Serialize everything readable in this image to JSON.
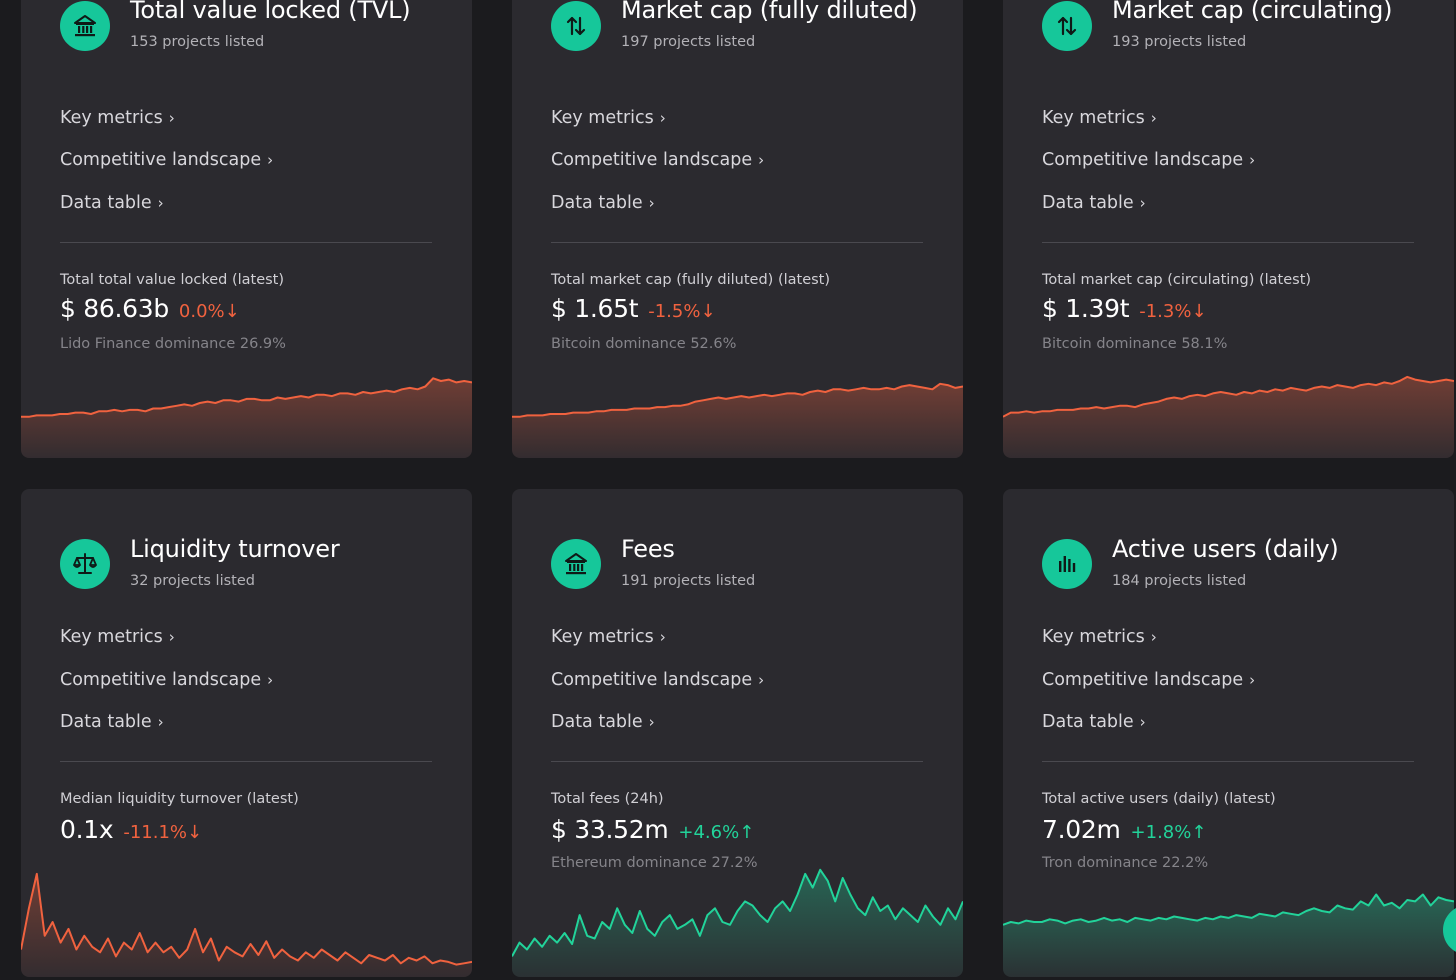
{
  "colors": {
    "accent": "#16c79a",
    "negative": "#f0623f",
    "positive": "#22d39a",
    "card": "#2b2a2f"
  },
  "links": {
    "key_metrics": "Key metrics",
    "competitive_landscape": "Competitive landscape",
    "data_table": "Data table",
    "chevron": "›"
  },
  "cards": [
    {
      "icon": "bank-icon",
      "title": "Total value locked (TVL)",
      "subtitle": "153 projects listed",
      "metric_label": "Total total value locked (latest)",
      "value": "$ 86.63b",
      "change": "0.0%↓",
      "trend": "negative",
      "dominance": "Lido Finance dominance 26.9%",
      "series": [
        30,
        30,
        31,
        31,
        31,
        32,
        32,
        33,
        33,
        32,
        34,
        34,
        35,
        34,
        35,
        35,
        34,
        36,
        36,
        37,
        38,
        39,
        38,
        40,
        41,
        40,
        42,
        42,
        41,
        43,
        43,
        42,
        42,
        44,
        43,
        44,
        45,
        44,
        46,
        46,
        45,
        47,
        47,
        46,
        48,
        47,
        48,
        49,
        48,
        50,
        51,
        50,
        52,
        58,
        56,
        57,
        55,
        56,
        55
      ]
    },
    {
      "icon": "arrows-updown-icon",
      "title": "Market cap (fully diluted)",
      "subtitle": "197 projects listed",
      "metric_label": "Total market cap (fully diluted) (latest)",
      "value": "$ 1.65t",
      "change": "-1.5%↓",
      "trend": "negative",
      "dominance": "Bitcoin dominance 52.6%",
      "series": [
        30,
        30,
        31,
        31,
        31,
        32,
        32,
        32,
        33,
        33,
        33,
        34,
        34,
        35,
        35,
        35,
        36,
        36,
        36,
        37,
        37,
        38,
        38,
        39,
        41,
        42,
        43,
        44,
        43,
        44,
        45,
        44,
        45,
        46,
        45,
        46,
        47,
        47,
        46,
        48,
        49,
        48,
        50,
        50,
        49,
        50,
        51,
        50,
        50,
        51,
        50,
        52,
        53,
        52,
        51,
        50,
        54,
        53,
        51,
        52
      ]
    },
    {
      "icon": "arrows-updown-icon",
      "title": "Market cap (circulating)",
      "subtitle": "193 projects listed",
      "metric_label": "Total market cap (circulating) (latest)",
      "value": "$ 1.39t",
      "change": "-1.3%↓",
      "trend": "negative",
      "dominance": "Bitcoin dominance 58.1%",
      "series": [
        30,
        33,
        33,
        34,
        33,
        34,
        34,
        35,
        35,
        35,
        36,
        36,
        37,
        36,
        37,
        38,
        38,
        37,
        39,
        40,
        41,
        43,
        44,
        43,
        45,
        46,
        45,
        47,
        48,
        47,
        46,
        48,
        47,
        49,
        48,
        50,
        49,
        51,
        50,
        49,
        51,
        52,
        51,
        53,
        52,
        51,
        53,
        54,
        53,
        55,
        54,
        56,
        59,
        57,
        56,
        55,
        56,
        57,
        56
      ]
    },
    {
      "icon": "scale-icon",
      "title": "Liquidity turnover",
      "subtitle": "32 projects listed",
      "metric_label": "Median liquidity turnover (latest)",
      "value": "0.1x",
      "change": "-11.1%↓",
      "trend": "negative",
      "dominance": "",
      "series": [
        20,
        50,
        75,
        30,
        40,
        25,
        35,
        20,
        30,
        22,
        18,
        28,
        15,
        25,
        20,
        32,
        18,
        25,
        18,
        22,
        14,
        20,
        35,
        18,
        28,
        12,
        22,
        18,
        15,
        24,
        16,
        26,
        14,
        20,
        15,
        12,
        18,
        14,
        20,
        16,
        12,
        18,
        14,
        10,
        16,
        14,
        12,
        16,
        10,
        14,
        12,
        15,
        10,
        12,
        11,
        9,
        10,
        11
      ]
    },
    {
      "icon": "bank-icon",
      "title": "Fees",
      "subtitle": "191 projects listed",
      "metric_label": "Total fees (24h)",
      "value": "$ 33.52m",
      "change": "+4.6%↑",
      "trend": "positive",
      "dominance": "Ethereum dominance 27.2%",
      "series": [
        15,
        25,
        20,
        28,
        22,
        30,
        25,
        32,
        24,
        45,
        30,
        28,
        40,
        35,
        50,
        38,
        32,
        48,
        35,
        30,
        40,
        45,
        35,
        38,
        42,
        30,
        45,
        50,
        40,
        38,
        48,
        55,
        52,
        45,
        40,
        50,
        55,
        48,
        60,
        75,
        65,
        78,
        70,
        55,
        72,
        60,
        50,
        45,
        58,
        48,
        52,
        42,
        50,
        45,
        40,
        52,
        44,
        38,
        50,
        42,
        55
      ]
    },
    {
      "icon": "bar-chart-icon",
      "title": "Active users (daily)",
      "subtitle": "184 projects listed",
      "metric_label": "Total active users (daily) (latest)",
      "value": "7.02m",
      "change": "+1.8%↑",
      "trend": "positive",
      "dominance": "Tron dominance 22.2%",
      "series": [
        38,
        40,
        39,
        41,
        40,
        40,
        42,
        41,
        39,
        41,
        42,
        40,
        41,
        43,
        41,
        42,
        40,
        43,
        42,
        41,
        43,
        42,
        44,
        43,
        42,
        41,
        43,
        42,
        44,
        43,
        45,
        44,
        43,
        46,
        45,
        44,
        47,
        46,
        45,
        48,
        50,
        48,
        47,
        52,
        50,
        49,
        55,
        52,
        60,
        52,
        54,
        50,
        56,
        55,
        60,
        52,
        58,
        56,
        55
      ]
    }
  ]
}
